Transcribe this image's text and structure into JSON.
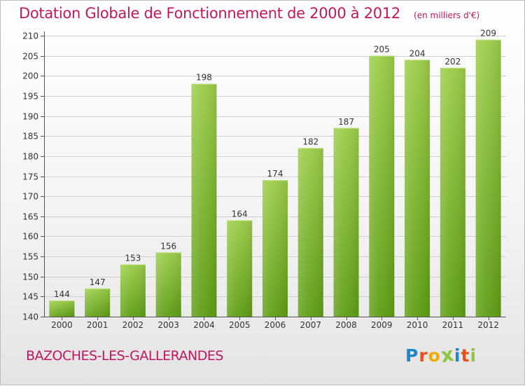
{
  "header": {
    "title": "Dotation Globale de Fonctionnement de 2000 à 2012",
    "unit": "(en milliers d'€)"
  },
  "footer": {
    "commune": "BAZOCHES-LES-GALLERANDES",
    "logo_letters": [
      "P",
      "r",
      "o",
      "x",
      "i",
      "t",
      "i"
    ],
    "logo_colors": [
      "#1e88c8",
      "#e94e1b",
      "#f2a900",
      "#8dc63f",
      "#1e88c8",
      "#e94e1b",
      "#8dc63f"
    ]
  },
  "colors": {
    "bar_top": "#9ccc48",
    "bar_bottom": "#5e9e14",
    "axis": "#555555",
    "grid": "#d0d0d0",
    "title": "#c2185b"
  },
  "chart_data": {
    "type": "bar",
    "categories": [
      "2000",
      "2001",
      "2002",
      "2003",
      "2004",
      "2005",
      "2006",
      "2007",
      "2008",
      "2009",
      "2010",
      "2011",
      "2012"
    ],
    "values": [
      144,
      147,
      153,
      156,
      198,
      164,
      174,
      182,
      187,
      205,
      204,
      202,
      209
    ],
    "ylim": [
      140,
      210
    ],
    "yticks": [
      140,
      145,
      150,
      155,
      160,
      165,
      170,
      175,
      180,
      185,
      190,
      195,
      200,
      205,
      210
    ],
    "grid": true,
    "data_labels": true
  }
}
